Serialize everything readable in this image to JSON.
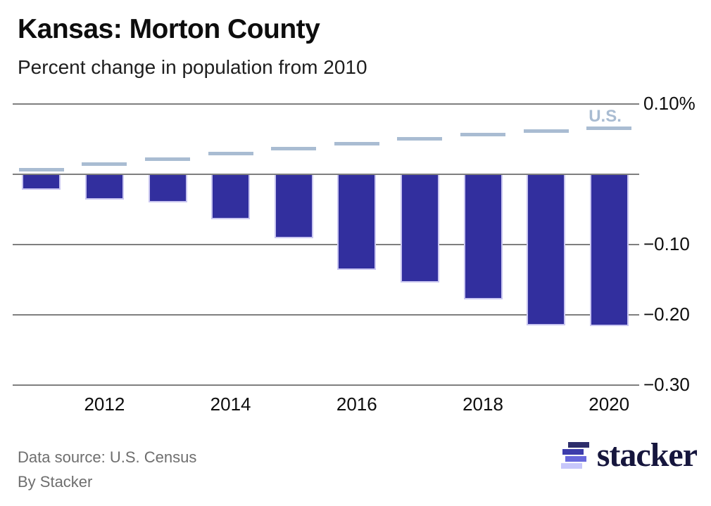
{
  "title": "Kansas: Morton County",
  "subtitle": "Percent change in population from 2010",
  "chart_data": {
    "type": "bar",
    "title": "Kansas: Morton County",
    "subtitle": "Percent change in population from 2010",
    "categories": [
      "2011",
      "2012",
      "2013",
      "2014",
      "2015",
      "2016",
      "2017",
      "2018",
      "2019",
      "2020"
    ],
    "series": [
      {
        "name": "Morton County",
        "style": "bar",
        "color": "#322f9e",
        "values": [
          -0.021,
          -0.035,
          -0.039,
          -0.063,
          -0.09,
          -0.135,
          -0.153,
          -0.177,
          -0.214,
          -0.215
        ]
      },
      {
        "name": "U.S.",
        "style": "dash",
        "color": "#a9bcd2",
        "label": "U.S.",
        "values": [
          0.007,
          0.015,
          0.022,
          0.03,
          0.037,
          0.044,
          0.051,
          0.057,
          0.062,
          0.066
        ]
      }
    ],
    "ylim": [
      -0.3,
      0.1
    ],
    "yticks": [
      {
        "value": 0.1,
        "label": "0.10%"
      },
      {
        "value": -0.1,
        "label": "−0.10"
      },
      {
        "value": -0.2,
        "label": "−0.20"
      },
      {
        "value": -0.3,
        "label": "−0.30"
      }
    ],
    "gridline_values": [
      0.1,
      0,
      -0.1,
      -0.2,
      -0.3
    ],
    "xticks": [
      {
        "index": 1,
        "label": "2012"
      },
      {
        "index": 3,
        "label": "2014"
      },
      {
        "index": 5,
        "label": "2016"
      },
      {
        "index": 7,
        "label": "2018"
      },
      {
        "index": 9,
        "label": "2020"
      }
    ],
    "grid": true,
    "legend_position": "inline-top-right"
  },
  "footer": {
    "source": "Data source: U.S. Census",
    "byline": "By Stacker"
  },
  "logo": {
    "wordmark": "stacker",
    "wordmark_color": "#16163d",
    "mark_colors": [
      "#2e2e6b",
      "#3c3cab",
      "#6868dc",
      "#c7c7fb"
    ]
  }
}
